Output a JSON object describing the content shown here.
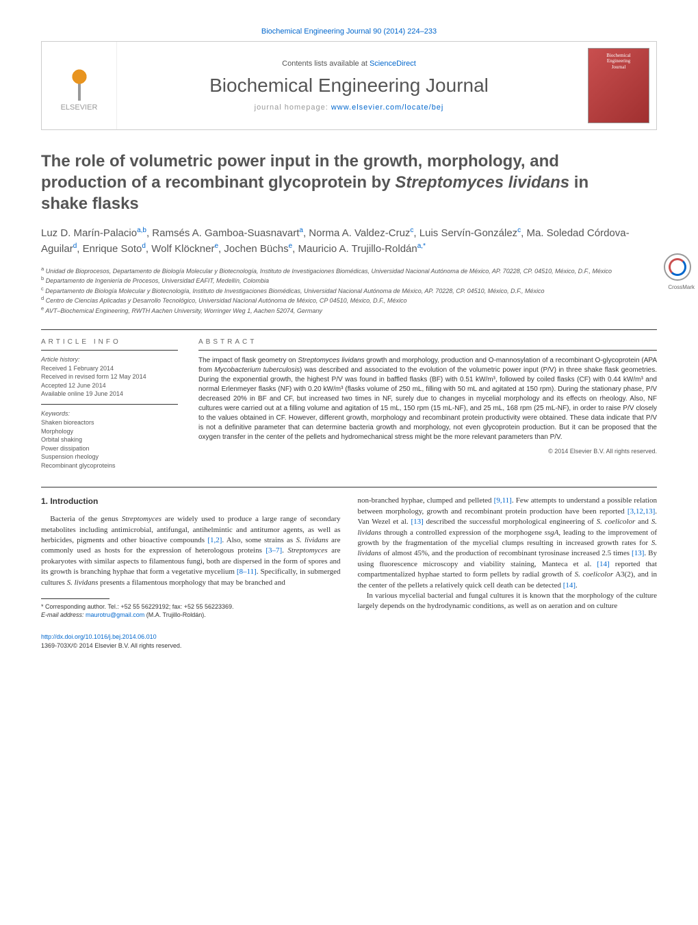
{
  "header": {
    "top_citation": "Biochemical Engineering Journal 90 (2014) 224–233",
    "contents_prefix": "Contents lists available at ",
    "contents_link": "ScienceDirect",
    "journal_name": "Biochemical Engineering Journal",
    "homepage_prefix": "journal homepage: ",
    "homepage_link": "www.elsevier.com/locate/bej",
    "elsevier_label": "ELSEVIER",
    "cover_text1": "Biochemical",
    "cover_text2": "Engineering",
    "cover_text3": "Journal",
    "crossmark_label": "CrossMark"
  },
  "title": {
    "line1": "The role of volumetric power input in the growth, morphology, and production of a recombinant glycoprotein by ",
    "italic": "Streptomyces lividans",
    "line2": " in shake flasks"
  },
  "authors_html": "Luz D. Marín-Palacio<sup>a,b</sup>, Ramsés A. Gamboa-Suasnavart<sup>a</sup>, Norma A. Valdez-Cruz<sup>c</sup>, Luis Servín-González<sup>c</sup>, Ma. Soledad Córdova-Aguilar<sup>d</sup>, Enrique Soto<sup>d</sup>, Wolf Klöckner<sup>e</sup>, Jochen Büchs<sup>e</sup>, Mauricio A. Trujillo-Roldán<sup>a,*</sup>",
  "affiliations": {
    "a": "Unidad de Bioprocesos, Departamento de Biología Molecular y Biotecnología, Instituto de Investigaciones Biomédicas, Universidad Nacional Autónoma de México, AP. 70228, CP. 04510, México, D.F., México",
    "b": "Departamento de Ingeniería de Procesos, Universidad EAFIT, Medellín, Colombia",
    "c": "Departamento de Biología Molecular y Biotecnología, Instituto de Investigaciones Biomédicas, Universidad Nacional Autónoma de México, AP. 70228, CP. 04510, México, D.F., México",
    "d": "Centro de Ciencias Aplicadas y Desarrollo Tecnológico, Universidad Nacional Autónoma de México, CP 04510, México, D.F., México",
    "e": "AVT–Biochemical Engineering, RWTH Aachen University, Worringer Weg 1, Aachen 52074, Germany"
  },
  "article_info": {
    "heading": "ARTICLE INFO",
    "history_label": "Article history:",
    "received": "Received 1 February 2014",
    "revised": "Received in revised form 12 May 2014",
    "accepted": "Accepted 12 June 2014",
    "online": "Available online 19 June 2014",
    "keywords_label": "Keywords:",
    "keywords": [
      "Shaken bioreactors",
      "Morphology",
      "Orbital shaking",
      "Power dissipation",
      "Suspension rheology",
      "Recombinant glycoproteins"
    ]
  },
  "abstract": {
    "heading": "ABSTRACT",
    "text": "The impact of flask geometry on <span class=\"italic\">Streptomyces lividans</span> growth and morphology, production and O-mannosylation of a recombinant O-glycoprotein (APA from <span class=\"italic\">Mycobacterium tuberculosis</span>) was described and associated to the evolution of the volumetric power input (P/V) in three shake flask geometries. During the exponential growth, the highest P/V was found in baffled flasks (BF) with 0.51 kW/m³, followed by coiled flasks (CF) with 0.44 kW/m³ and normal Erlenmeyer flasks (NF) with 0.20 kW/m³ (flasks volume of 250 mL, filling with 50 mL and agitated at 150 rpm). During the stationary phase, P/V decreased 20% in BF and CF, but increased two times in NF, surely due to changes in mycelial morphology and its effects on rheology. Also, NF cultures were carried out at a filling volume and agitation of 15 mL, 150 rpm (15 mL-NF), and 25 mL, 168 rpm (25 mL-NF), in order to raise P/V closely to the values obtained in CF. However, different growth, morphology and recombinant protein productivity were obtained. These data indicate that P/V is not a definitive parameter that can determine bacteria growth and morphology, not even glycoprotein production. But it can be proposed that the oxygen transfer in the center of the pellets and hydromechanical stress might be the more relevant parameters than P/V.",
    "copyright": "© 2014 Elsevier B.V. All rights reserved."
  },
  "body": {
    "section_heading": "1. Introduction",
    "col1_p1": "Bacteria of the genus <span class=\"italic\">Streptomyces</span> are widely used to produce a large range of secondary metabolites including antimicrobial, antifungal, antihelmintic and antitumor agents, as well as herbicides, pigments and other bioactive compounds <span class=\"ref\">[1,2]</span>. Also, some strains as <span class=\"italic\">S. lividans</span> are commonly used as hosts for the expression of heterologous proteins <span class=\"ref\">[3–7]</span>. <span class=\"italic\">Streptomyces</span> are prokaryotes with similar aspects to filamentous fungi, both are dispersed in the form of spores and its growth is branching hyphae that form a vegetative mycelium <span class=\"ref\">[8–11]</span>. Specifically, in submerged cultures <span class=\"italic\">S. lividans</span> presents a filamentous morphology that may be branched and",
    "col2_p1": "non-branched hyphae, clumped and pelleted <span class=\"ref\">[9,11]</span>. Few attempts to understand a possible relation between morphology, growth and recombinant protein production have been reported <span class=\"ref\">[3,12,13]</span>. Van Wezel et al. <span class=\"ref\">[13]</span> described the successful morphological engineering of <span class=\"italic\">S. coelicolor</span> and <span class=\"italic\">S. lividans</span> through a controlled expression of the morphogene <span class=\"italic\">ssgA</span>, leading to the improvement of growth by the fragmentation of the mycelial clumps resulting in increased growth rates for <span class=\"italic\">S. lividans</span> of almost 45%, and the production of recombinant tyrosinase increased 2.5 times <span class=\"ref\">[13]</span>. By using fluorescence microscopy and viability staining, Manteca et al. <span class=\"ref\">[14]</span> reported that compartmentalized hyphae started to form pellets by radial growth of <span class=\"italic\">S. coelicolor</span> A3(2), and in the center of the pellets a relatively quick cell death can be detected <span class=\"ref\">[14]</span>.",
    "col2_p2": "In various mycelial bacterial and fungal cultures it is known that the morphology of the culture largely depends on the hydrodynamic conditions, as well as on aeration and on culture"
  },
  "footnote": {
    "corresponding": "* Corresponding author. Tel.: +52 55 56229192; fax: +52 55 56223369.",
    "email_label": "E-mail address: ",
    "email": "maurotru@gmail.com",
    "email_suffix": " (M.A. Trujillo-Roldán)."
  },
  "doi": {
    "url": "http://dx.doi.org/10.1016/j.bej.2014.06.010",
    "issn": "1369-703X/© 2014 Elsevier B.V. All rights reserved."
  },
  "colors": {
    "link": "#0066cc",
    "text": "#333333",
    "muted": "#555555",
    "cover_bg": "#c94f4f"
  }
}
